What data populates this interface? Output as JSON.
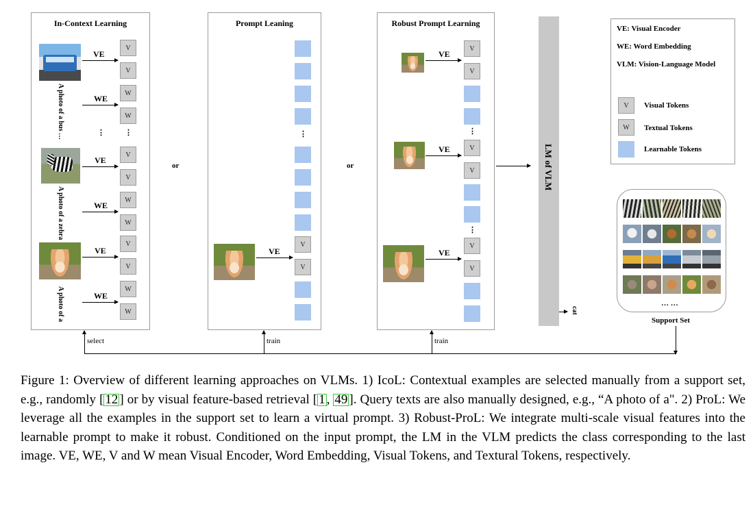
{
  "panels": {
    "icl": {
      "title": "In-Context Learning",
      "bottom_label": "select"
    },
    "pl": {
      "title": "Prompt Leaning",
      "bottom_label": "train"
    },
    "rpl": {
      "title": "Robust Prompt Learning",
      "bottom_label": "train"
    }
  },
  "labels": {
    "ve": "VE",
    "we": "WE",
    "or": "or",
    "dots": "⋮",
    "query_bus": "A photo of a bus …",
    "query_zebra": "A photo of a zebra",
    "query_a": "A photo of a",
    "v": "V",
    "w": "W",
    "lm": "LM  of  VLM",
    "cat": "cat"
  },
  "legend": {
    "ve": "VE: Visual Encoder",
    "we": "WE: Word Embedding",
    "vlm": "VLM: Vision-Language Model",
    "visual_tokens": "Visual Tokens",
    "textual_tokens": "Textual Tokens",
    "learnable_tokens": "Learnable Tokens",
    "v": "V",
    "w": "W"
  },
  "support_set": {
    "label": "Support Set",
    "ellipsis": "… …"
  },
  "colors": {
    "learnable": "#a9c7ef",
    "token": "#cfcfcf",
    "lm_bar": "#c8c8c8",
    "ref_box": "#2ecc2e"
  },
  "caption": {
    "p1": "Figure 1: Overview of different learning approaches on VLMs. 1) IcoL: Contextual examples are selected manually from a support set, e.g., randomly [",
    "ref1": "12",
    "p2": "] or by visual feature-based retrieval [",
    "ref2": "1",
    "p3": ", ",
    "ref3": "49",
    "p4": "]. Query texts are also manually designed, e.g., “A photo of a\". 2) ProL: We leverage all the examples in the support set to learn a virtual prompt. 3) Robust-ProL: We integrate multi-scale visual features into the learnable prompt to make it robust. Conditioned on the input prompt, the LM in the VLM predicts the class corresponding to the last image. VE, WE, V and W mean Visual Encoder, Word Embedding, Visual Tokens, and Textural Tokens, respectively."
  }
}
